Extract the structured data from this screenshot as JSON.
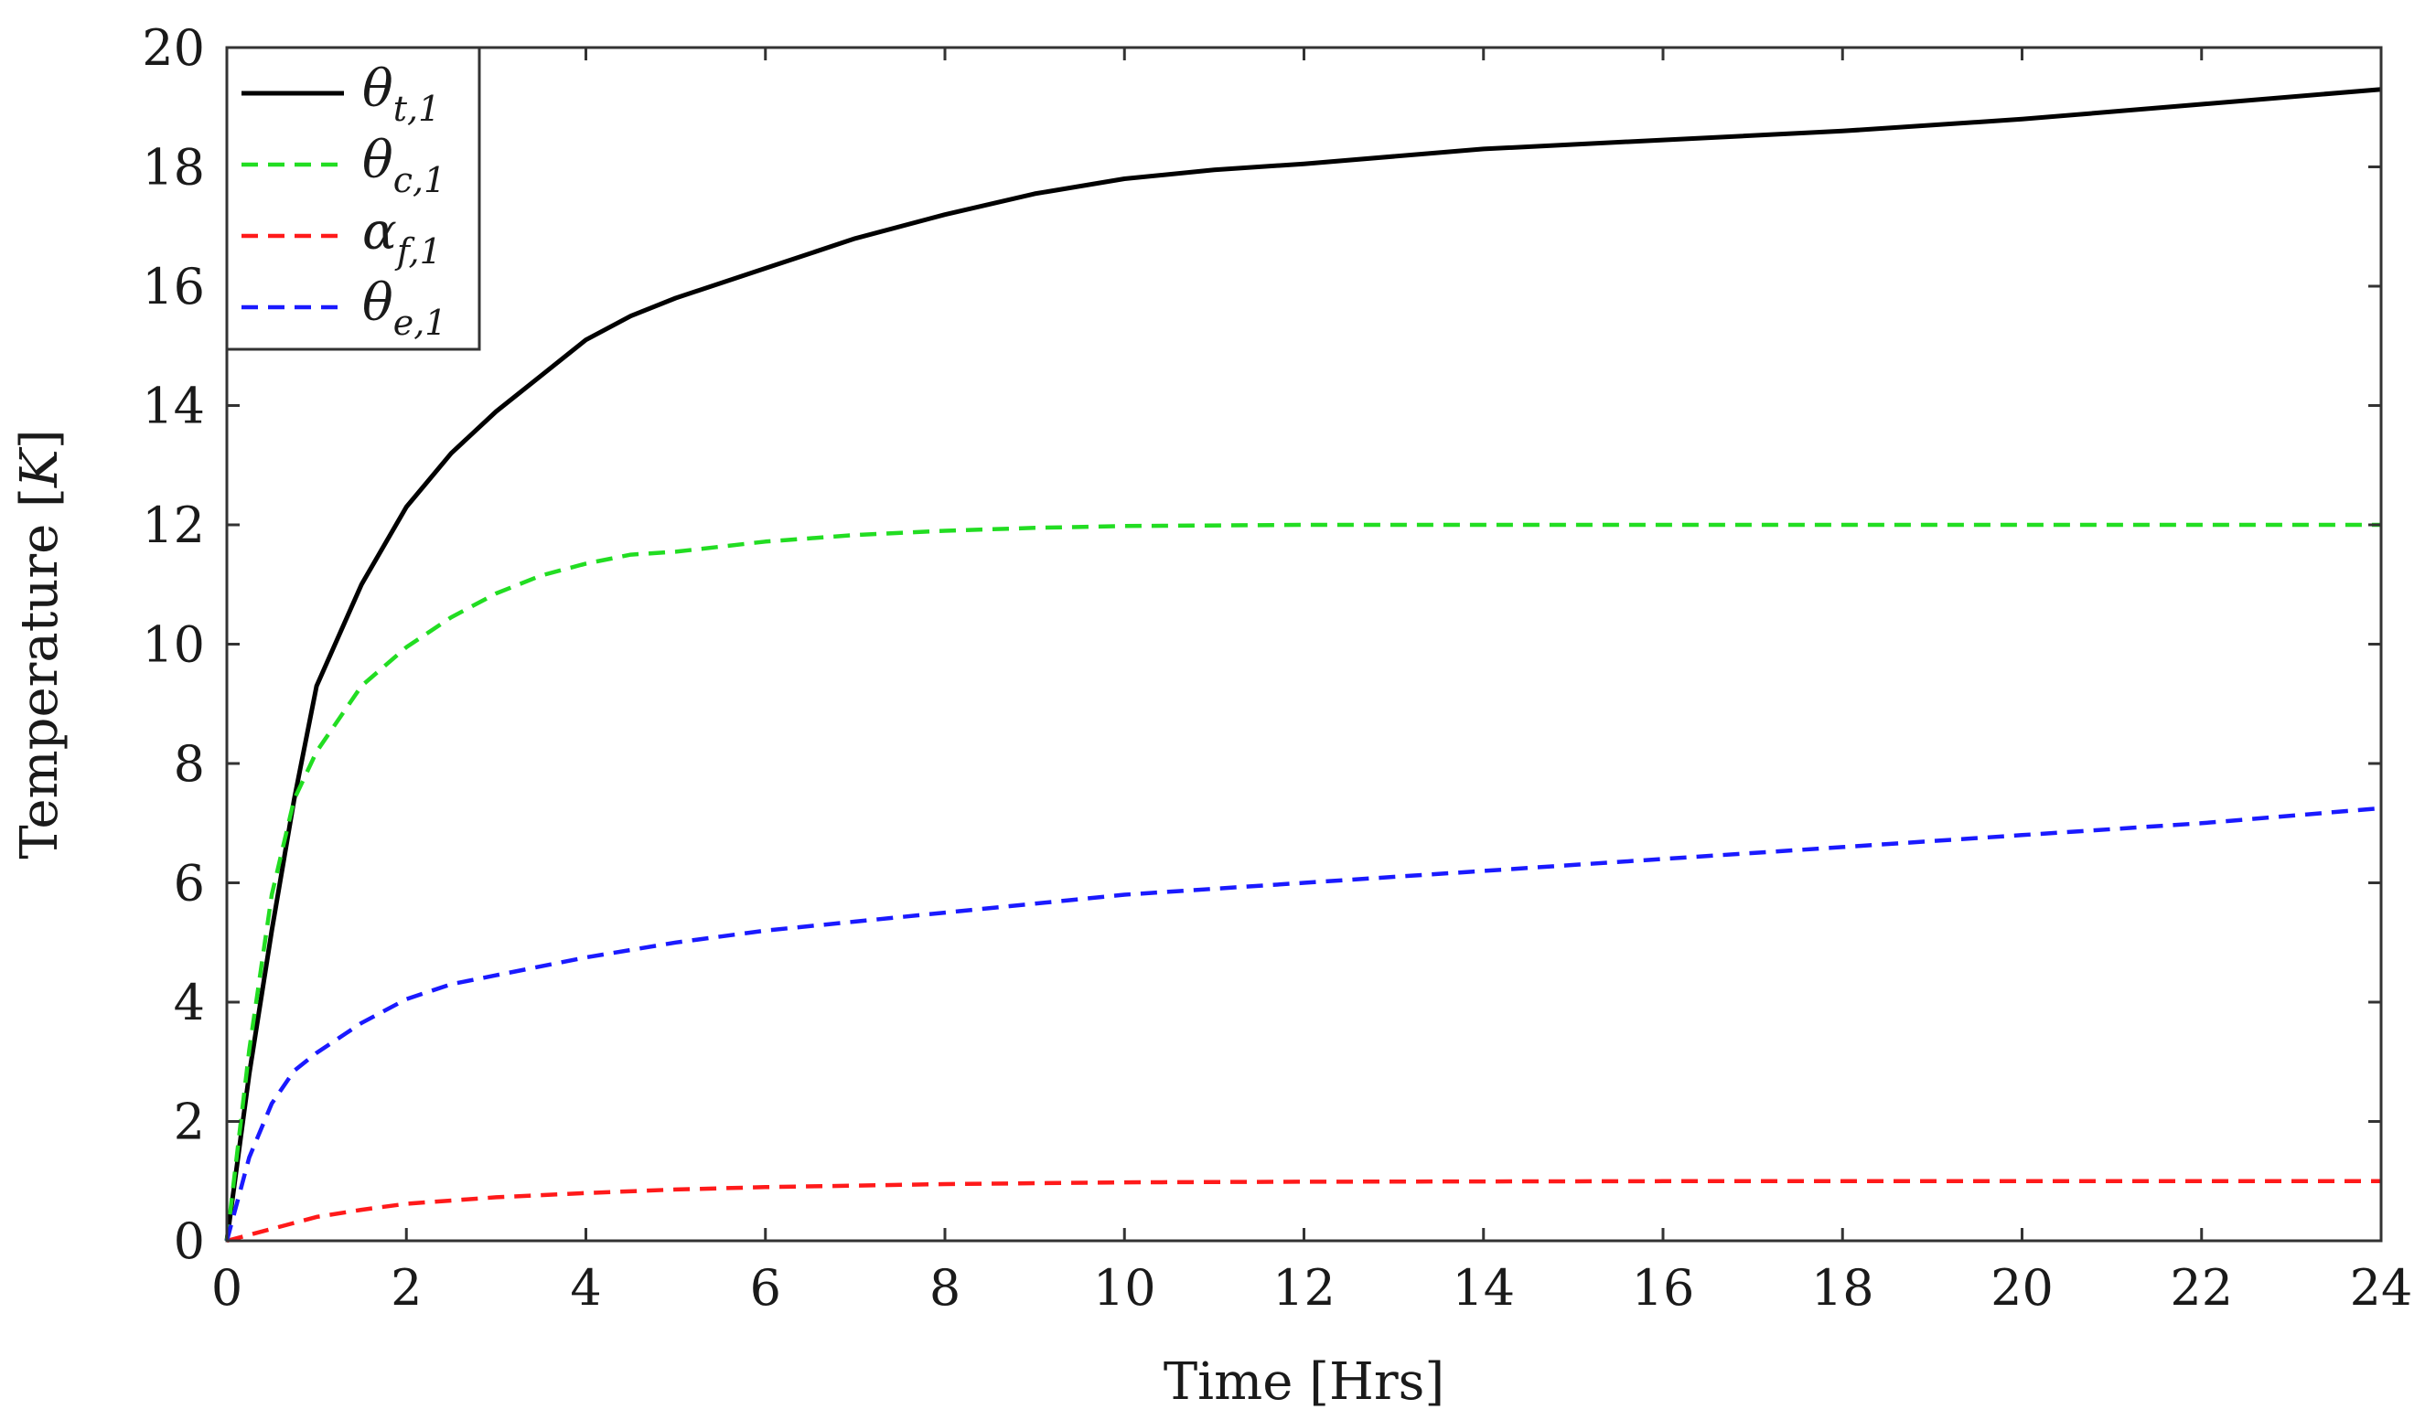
{
  "chart_data": {
    "type": "line",
    "xlabel": "Time [Hrs]",
    "ylabel_text": "Temperature [",
    "ylabel_unit": "K",
    "ylabel_close": "]",
    "xlim": [
      0,
      24
    ],
    "ylim": [
      0,
      20
    ],
    "xticks": [
      "0",
      "2",
      "4",
      "6",
      "8",
      "10",
      "12",
      "14",
      "16",
      "18",
      "20",
      "22",
      "24"
    ],
    "yticks": [
      "0",
      "2",
      "4",
      "6",
      "8",
      "10",
      "12",
      "14",
      "16",
      "18",
      "20"
    ],
    "grid": false,
    "legend_position": "top-left",
    "series": [
      {
        "name": "θt,1",
        "symbol": "θ",
        "sub": "t,1",
        "color": "#000000",
        "style": "solid",
        "x": [
          0,
          0.25,
          0.5,
          0.75,
          1,
          1.5,
          2,
          2.5,
          3,
          3.5,
          4,
          4.5,
          5,
          6,
          7,
          8,
          9,
          10,
          11,
          12,
          14,
          16,
          18,
          20,
          22,
          24
        ],
        "y": [
          0,
          2.8,
          5.2,
          7.4,
          9.3,
          11.0,
          12.3,
          13.2,
          13.9,
          14.5,
          15.1,
          15.5,
          15.8,
          16.3,
          16.8,
          17.2,
          17.55,
          17.8,
          17.95,
          18.05,
          18.3,
          18.45,
          18.6,
          18.8,
          19.05,
          19.3
        ]
      },
      {
        "name": "θc,1",
        "symbol": "θ",
        "sub": "c,1",
        "color": "#22dd22",
        "style": "dashed",
        "x": [
          0,
          0.25,
          0.5,
          0.75,
          1,
          1.5,
          2,
          2.5,
          3,
          3.5,
          4,
          4.5,
          5,
          6,
          7,
          8,
          9,
          10,
          12,
          14,
          16,
          18,
          20,
          22,
          24
        ],
        "y": [
          0,
          3.2,
          5.8,
          7.4,
          8.2,
          9.3,
          9.95,
          10.45,
          10.85,
          11.15,
          11.35,
          11.5,
          11.55,
          11.72,
          11.83,
          11.9,
          11.95,
          11.98,
          12.0,
          12.0,
          12.0,
          12.0,
          12.0,
          12.0,
          12.0
        ]
      },
      {
        "name": "αf,1",
        "symbol": "α",
        "sub": "f,1",
        "color": "#ff1a1a",
        "style": "dashed",
        "x": [
          0,
          0.5,
          1,
          1.5,
          2,
          3,
          4,
          5,
          6,
          8,
          10,
          12,
          16,
          20,
          24
        ],
        "y": [
          0,
          0.2,
          0.4,
          0.52,
          0.62,
          0.73,
          0.8,
          0.86,
          0.9,
          0.95,
          0.98,
          0.99,
          1.0,
          1.0,
          1.0
        ]
      },
      {
        "name": "θe,1",
        "symbol": "θ",
        "sub": "e,1",
        "color": "#1a1aff",
        "style": "dashed",
        "x": [
          0,
          0.25,
          0.5,
          0.75,
          1,
          1.5,
          2,
          2.5,
          3,
          4,
          5,
          6,
          7,
          8,
          10,
          12,
          14,
          16,
          18,
          20,
          22,
          24
        ],
        "y": [
          0,
          1.4,
          2.3,
          2.85,
          3.15,
          3.65,
          4.05,
          4.3,
          4.45,
          4.75,
          5.0,
          5.2,
          5.35,
          5.5,
          5.8,
          6.0,
          6.2,
          6.4,
          6.6,
          6.8,
          7.0,
          7.25
        ]
      }
    ]
  }
}
